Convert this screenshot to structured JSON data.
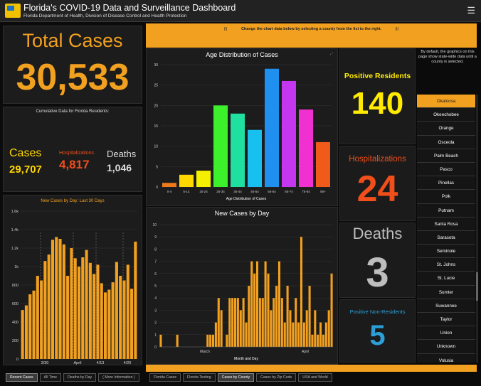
{
  "header": {
    "title": "Florida's COVID-19 Data and Surveillance Dashboard",
    "subtitle": "Florida Department of Health, Division of Disease Control and Health Protection",
    "menu_icon": "hamburger-menu-icon"
  },
  "summary": {
    "total_label": "Total Cases",
    "total_value": "30,533",
    "cumulative_label": "Cumulative Data for Florida Residents:",
    "cases_label": "Cases",
    "cases_value": "29,707",
    "hosp_label": "Hospitalizations",
    "hosp_value": "4,817",
    "deaths_label": "Deaths",
    "deaths_value": "1,046"
  },
  "banner": {
    "text": "Change the chart data below by selecting a county from the list to the right.",
    "marks": "|||"
  },
  "county_stats": {
    "positive_label": "Positive Residents",
    "positive_value": "140",
    "hosp_label": "Hospitalizations",
    "hosp_value": "24",
    "deaths_label": "Deaths",
    "deaths_value": "3",
    "nonres_label": "Positive Non-Residents",
    "nonres_value": "5",
    "note": "By default, the graphics on this page show state-wide data until a county is selected."
  },
  "county_list": [
    "Okaloosa",
    "Okeechobee",
    "Orange",
    "Osceola",
    "Palm Beach",
    "Pasco",
    "Pinellas",
    "Polk",
    "Putnam",
    "Santa Rosa",
    "Sarasota",
    "Seminole",
    "St. Johns",
    "St. Lucie",
    "Sumter",
    "Suwannee",
    "Taylor",
    "Union",
    "Unknown",
    "Volusia"
  ],
  "selected_county": "Okaloosa",
  "tabs_left": [
    "Recent Cases",
    "All Time",
    "Deaths by Day",
    "( More Information )"
  ],
  "tabs_right": [
    "Florida Cases",
    "Florida Testing",
    "Cases by County",
    "Cases by Zip Code",
    "USA and World"
  ],
  "colors": {
    "accent": "#f2a01f",
    "yellow": "#ffea00",
    "red": "#f04e1a",
    "grey": "#bdbdbd",
    "blue": "#2b9fd6",
    "bar": "#f2a01f"
  },
  "chart_data": [
    {
      "type": "bar",
      "title": "New Cases by Day: Last 30 Days",
      "x_ticks": [
        "3/30",
        "April",
        "4/13",
        "4/20"
      ],
      "y_ticks": [
        "0",
        "200",
        "400",
        "600",
        "800",
        "1k",
        "1.2k",
        "1.4k",
        "1.6k"
      ],
      "ylim": [
        0,
        1600
      ],
      "values": [
        530,
        580,
        700,
        740,
        900,
        850,
        1060,
        1130,
        1290,
        1320,
        1300,
        1240,
        900,
        1200,
        1090,
        1000,
        1100,
        1180,
        1040,
        920,
        1020,
        820,
        720,
        750,
        830,
        1050,
        900,
        850,
        1020,
        760,
        1270
      ]
    },
    {
      "type": "bar",
      "title": "Age Distribution of Cases",
      "xlabel": "Age Distribution of Cases",
      "categories": [
        "0-4",
        "5-14",
        "15-24",
        "25-34",
        "35-44",
        "45-54",
        "55-64",
        "65-74",
        "75-84",
        "85+"
      ],
      "values": [
        1,
        3,
        4,
        20,
        18,
        14,
        29,
        26,
        19,
        11
      ],
      "colors": [
        "#f07a1a",
        "#ffd800",
        "#f5f000",
        "#3df02c",
        "#20e0a0",
        "#18c0f0",
        "#1f8ff0",
        "#c436f0",
        "#f030d0",
        "#f05a1a"
      ],
      "y_ticks": [
        "0",
        "5",
        "10",
        "15",
        "20",
        "25",
        "30"
      ],
      "ylim": [
        0,
        30
      ]
    },
    {
      "type": "bar",
      "title": "New Cases by Day",
      "xlabel": "Month and Day",
      "x_ticks": [
        "March",
        "April"
      ],
      "y_ticks": [
        "0",
        "1",
        "2",
        "3",
        "4",
        "5",
        "6",
        "7",
        "8",
        "9",
        "10"
      ],
      "ylim": [
        0,
        10
      ],
      "values": [
        1,
        0,
        0,
        0,
        0,
        0,
        1,
        0,
        0,
        0,
        0,
        0,
        0,
        0,
        0,
        0,
        0,
        1,
        1,
        1,
        2,
        4,
        3,
        0,
        1,
        4,
        4,
        4,
        4,
        3,
        4,
        2,
        5,
        7,
        6,
        7,
        4,
        4,
        7,
        6,
        3,
        4,
        5,
        7,
        4,
        2,
        5,
        3,
        2,
        4,
        2,
        9,
        2,
        3,
        5,
        1,
        3,
        1,
        2,
        1,
        2,
        3,
        6
      ]
    }
  ]
}
